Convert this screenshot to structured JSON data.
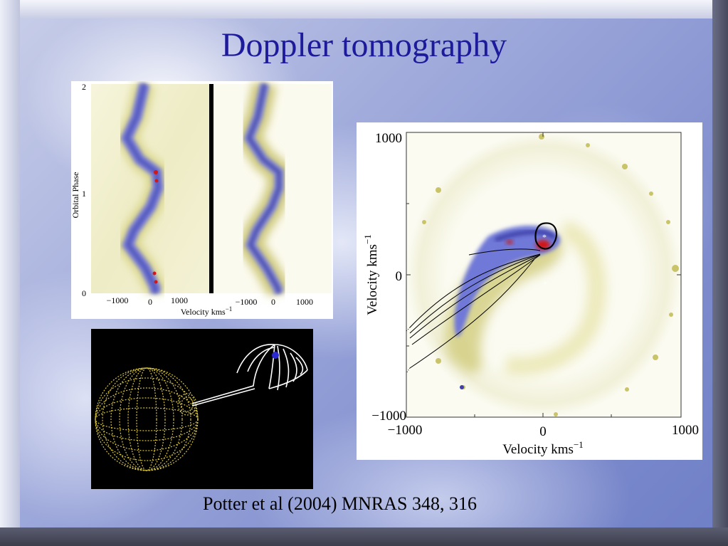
{
  "slide": {
    "title": "Doppler tomography",
    "caption": "Potter et al (2004) MNRAS 348, 316"
  },
  "trailed_spectra": {
    "y_axis_label": "Orbital Phase",
    "y_ticks": [
      "0",
      "1",
      "2"
    ],
    "x_axis_label": "Velocity kms",
    "x_axis_superscript": "−1",
    "left_x_ticks": [
      "−1000",
      "0",
      "1000"
    ],
    "right_x_ticks": [
      "−1000",
      "0",
      "1000"
    ]
  },
  "doppler_map": {
    "y_axis_label": "Velocity kms",
    "y_axis_superscript": "−1",
    "x_axis_label": "Velocity kms",
    "x_axis_superscript": "−1",
    "y_ticks": [
      "1000",
      "0",
      "−1000"
    ],
    "x_ticks": [
      "−1000",
      "0",
      "1000"
    ],
    "white_dwarf_marker": "*",
    "center_of_mass_marker": "+"
  },
  "model_diagram": {
    "background": "#000000",
    "star_color": "#d4c23a",
    "stream_color": "#ffffff"
  },
  "colors": {
    "title": "#1e1a9c",
    "map_blue": "#6f78d8",
    "map_yellow": "#c9c46a",
    "map_red": "#d01818"
  }
}
